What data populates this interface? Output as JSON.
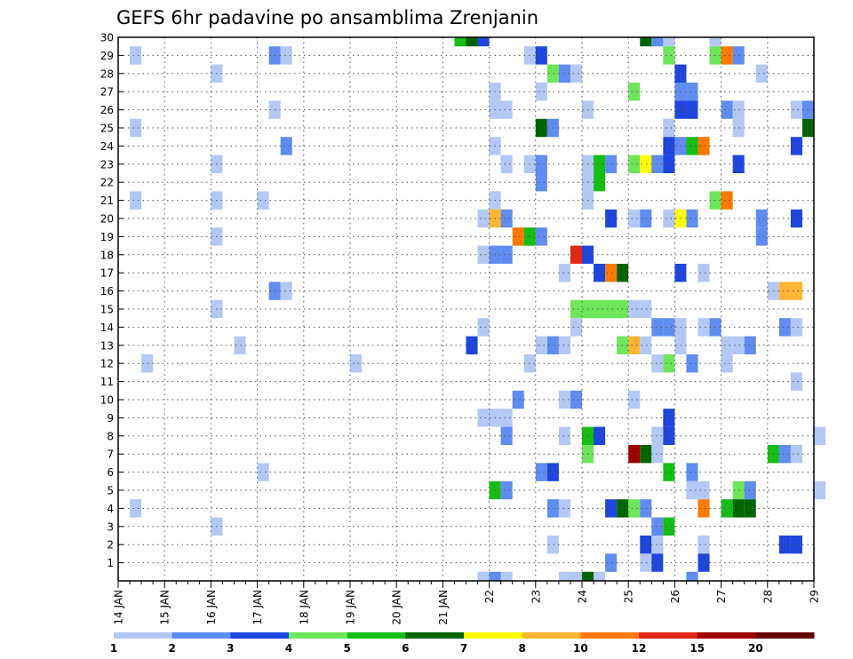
{
  "chart_data": {
    "type": "heatmap",
    "title": "GEFS 6hr padavine po ansamblima Zrenjanin",
    "xlabel": "",
    "ylabel": "",
    "x_tick_labels": [
      "14 JAN",
      "15 JAN",
      "16 JAN",
      "17 JAN",
      "18 JAN",
      "19 JAN",
      "20 JAN",
      "21 JAN",
      "22",
      "23",
      "24",
      "25",
      "26",
      "27",
      "28",
      "29"
    ],
    "x_tick_days": [
      14,
      15,
      16,
      17,
      18,
      19,
      20,
      21,
      22,
      23,
      24,
      25,
      26,
      27,
      28,
      29
    ],
    "xlim_days": [
      14,
      29
    ],
    "time_step_hours": 6,
    "y_tick_labels": [
      "1",
      "2",
      "3",
      "4",
      "5",
      "6",
      "7",
      "8",
      "9",
      "10",
      "11",
      "12",
      "13",
      "14",
      "15",
      "16",
      "17",
      "18",
      "19",
      "20",
      "21",
      "22",
      "23",
      "24",
      "25",
      "26",
      "27",
      "28",
      "29",
      "30"
    ],
    "ylim": [
      0,
      30
    ],
    "grid": true,
    "legend": {
      "placement": "bottom",
      "thresholds": [
        "1",
        "2",
        "3",
        "4",
        "5",
        "6",
        "7",
        "8",
        "10",
        "12",
        "15",
        "20"
      ],
      "colors": [
        "#b4c8f5",
        "#5f8cf0",
        "#1e46dc",
        "#6ee65a",
        "#14be14",
        "#006400",
        "#ffff00",
        "#ffb432",
        "#ff7800",
        "#e12814",
        "#a00000",
        "#640000"
      ]
    },
    "cells_note": "day = fractional day of January (6-hour step), level = color class index 1-12",
    "cells": [
      {
        "member": 30,
        "day": 21.25,
        "level": 5
      },
      {
        "member": 30,
        "day": 21.5,
        "level": 6
      },
      {
        "member": 30,
        "day": 21.75,
        "level": 3
      },
      {
        "member": 30,
        "day": 25.25,
        "level": 6
      },
      {
        "member": 30,
        "day": 25.5,
        "level": 2
      },
      {
        "member": 30,
        "day": 25.75,
        "level": 1
      },
      {
        "member": 30,
        "day": 26.75,
        "level": 1
      },
      {
        "member": 29,
        "day": 14.25,
        "level": 1
      },
      {
        "member": 29,
        "day": 17.25,
        "level": 2
      },
      {
        "member": 29,
        "day": 17.5,
        "level": 1
      },
      {
        "member": 29,
        "day": 22.75,
        "level": 1
      },
      {
        "member": 29,
        "day": 23,
        "level": 3
      },
      {
        "member": 29,
        "day": 25.75,
        "level": 4
      },
      {
        "member": 29,
        "day": 26.75,
        "level": 4
      },
      {
        "member": 29,
        "day": 27,
        "level": 9
      },
      {
        "member": 29,
        "day": 27.25,
        "level": 2
      },
      {
        "member": 28,
        "day": 16,
        "level": 1
      },
      {
        "member": 28,
        "day": 23.25,
        "level": 4
      },
      {
        "member": 28,
        "day": 23.5,
        "level": 2
      },
      {
        "member": 28,
        "day": 23.75,
        "level": 1
      },
      {
        "member": 28,
        "day": 26,
        "level": 3
      },
      {
        "member": 28,
        "day": 27.75,
        "level": 1
      },
      {
        "member": 27,
        "day": 22,
        "level": 1
      },
      {
        "member": 27,
        "day": 23,
        "level": 1
      },
      {
        "member": 27,
        "day": 25,
        "level": 4
      },
      {
        "member": 27,
        "day": 26,
        "level": 2
      },
      {
        "member": 27,
        "day": 26.25,
        "level": 2
      },
      {
        "member": 26,
        "day": 17.25,
        "level": 1
      },
      {
        "member": 26,
        "day": 22,
        "level": 1
      },
      {
        "member": 26,
        "day": 22.25,
        "level": 1
      },
      {
        "member": 26,
        "day": 24,
        "level": 1
      },
      {
        "member": 26,
        "day": 26,
        "level": 3
      },
      {
        "member": 26,
        "day": 26.25,
        "level": 3
      },
      {
        "member": 26,
        "day": 27,
        "level": 2
      },
      {
        "member": 26,
        "day": 27.25,
        "level": 1
      },
      {
        "member": 26,
        "day": 28.5,
        "level": 1
      },
      {
        "member": 26,
        "day": 28.75,
        "level": 2
      },
      {
        "member": 25,
        "day": 14.25,
        "level": 1
      },
      {
        "member": 25,
        "day": 23,
        "level": 6
      },
      {
        "member": 25,
        "day": 23.25,
        "level": 2
      },
      {
        "member": 25,
        "day": 25.75,
        "level": 1
      },
      {
        "member": 25,
        "day": 27.25,
        "level": 1
      },
      {
        "member": 25,
        "day": 28.75,
        "level": 6
      },
      {
        "member": 24,
        "day": 17.5,
        "level": 2
      },
      {
        "member": 24,
        "day": 22,
        "level": 1
      },
      {
        "member": 24,
        "day": 25.75,
        "level": 3
      },
      {
        "member": 24,
        "day": 26,
        "level": 2
      },
      {
        "member": 24,
        "day": 26.25,
        "level": 5
      },
      {
        "member": 24,
        "day": 26.5,
        "level": 9
      },
      {
        "member": 24,
        "day": 28.5,
        "level": 3
      },
      {
        "member": 23,
        "day": 16,
        "level": 1
      },
      {
        "member": 23,
        "day": 22.25,
        "level": 1
      },
      {
        "member": 23,
        "day": 22.75,
        "level": 1
      },
      {
        "member": 23,
        "day": 23,
        "level": 2
      },
      {
        "member": 23,
        "day": 24,
        "level": 1
      },
      {
        "member": 23,
        "day": 24.25,
        "level": 5
      },
      {
        "member": 23,
        "day": 24.5,
        "level": 2
      },
      {
        "member": 23,
        "day": 25,
        "level": 4
      },
      {
        "member": 23,
        "day": 25.25,
        "level": 7
      },
      {
        "member": 23,
        "day": 25.5,
        "level": 2
      },
      {
        "member": 23,
        "day": 25.75,
        "level": 3
      },
      {
        "member": 23,
        "day": 27.25,
        "level": 3
      },
      {
        "member": 22,
        "day": 23,
        "level": 2
      },
      {
        "member": 22,
        "day": 24,
        "level": 1
      },
      {
        "member": 22,
        "day": 24.25,
        "level": 5
      },
      {
        "member": 21,
        "day": 14.25,
        "level": 1
      },
      {
        "member": 21,
        "day": 16,
        "level": 1
      },
      {
        "member": 21,
        "day": 17,
        "level": 1
      },
      {
        "member": 21,
        "day": 22,
        "level": 1
      },
      {
        "member": 21,
        "day": 24,
        "level": 1
      },
      {
        "member": 21,
        "day": 26.75,
        "level": 4
      },
      {
        "member": 21,
        "day": 27,
        "level": 9
      },
      {
        "member": 20,
        "day": 21.75,
        "level": 1
      },
      {
        "member": 20,
        "day": 22,
        "level": 8
      },
      {
        "member": 20,
        "day": 22.25,
        "level": 2
      },
      {
        "member": 20,
        "day": 24.5,
        "level": 3
      },
      {
        "member": 20,
        "day": 25,
        "level": 1
      },
      {
        "member": 20,
        "day": 25.25,
        "level": 2
      },
      {
        "member": 20,
        "day": 25.75,
        "level": 1
      },
      {
        "member": 20,
        "day": 26,
        "level": 7
      },
      {
        "member": 20,
        "day": 26.25,
        "level": 2
      },
      {
        "member": 20,
        "day": 27.75,
        "level": 2
      },
      {
        "member": 20,
        "day": 28.5,
        "level": 3
      },
      {
        "member": 19,
        "day": 16,
        "level": 1
      },
      {
        "member": 19,
        "day": 22.5,
        "level": 9
      },
      {
        "member": 19,
        "day": 22.75,
        "level": 5
      },
      {
        "member": 19,
        "day": 23,
        "level": 2
      },
      {
        "member": 19,
        "day": 27.75,
        "level": 2
      },
      {
        "member": 18,
        "day": 21.75,
        "level": 1
      },
      {
        "member": 18,
        "day": 22,
        "level": 2
      },
      {
        "member": 18,
        "day": 22.25,
        "level": 2
      },
      {
        "member": 18,
        "day": 23.75,
        "level": 10
      },
      {
        "member": 18,
        "day": 24,
        "level": 3
      },
      {
        "member": 17,
        "day": 23.5,
        "level": 1
      },
      {
        "member": 17,
        "day": 24.25,
        "level": 3
      },
      {
        "member": 17,
        "day": 24.5,
        "level": 9
      },
      {
        "member": 17,
        "day": 24.75,
        "level": 6
      },
      {
        "member": 17,
        "day": 26,
        "level": 3
      },
      {
        "member": 17,
        "day": 26.5,
        "level": 1
      },
      {
        "member": 16,
        "day": 17.25,
        "level": 2
      },
      {
        "member": 16,
        "day": 17.5,
        "level": 1
      },
      {
        "member": 16,
        "day": 28,
        "level": 1
      },
      {
        "member": 16,
        "day": 28.25,
        "level": 8
      },
      {
        "member": 16,
        "day": 28.5,
        "level": 8
      },
      {
        "member": 15,
        "day": 16,
        "level": 1
      },
      {
        "member": 15,
        "day": 23.75,
        "level": 4
      },
      {
        "member": 15,
        "day": 24,
        "level": 4
      },
      {
        "member": 15,
        "day": 24.25,
        "level": 4
      },
      {
        "member": 15,
        "day": 24.5,
        "level": 4
      },
      {
        "member": 15,
        "day": 24.75,
        "level": 4
      },
      {
        "member": 15,
        "day": 25,
        "level": 1
      },
      {
        "member": 15,
        "day": 25.25,
        "level": 1
      },
      {
        "member": 14,
        "day": 21.75,
        "level": 1
      },
      {
        "member": 14,
        "day": 23.75,
        "level": 1
      },
      {
        "member": 14,
        "day": 25.5,
        "level": 2
      },
      {
        "member": 14,
        "day": 25.75,
        "level": 2
      },
      {
        "member": 14,
        "day": 26,
        "level": 1
      },
      {
        "member": 14,
        "day": 26.5,
        "level": 1
      },
      {
        "member": 14,
        "day": 26.75,
        "level": 2
      },
      {
        "member": 14,
        "day": 28.25,
        "level": 2
      },
      {
        "member": 14,
        "day": 28.5,
        "level": 1
      },
      {
        "member": 13,
        "day": 16.5,
        "level": 1
      },
      {
        "member": 13,
        "day": 21.5,
        "level": 3
      },
      {
        "member": 13,
        "day": 23,
        "level": 1
      },
      {
        "member": 13,
        "day": 23.25,
        "level": 2
      },
      {
        "member": 13,
        "day": 23.5,
        "level": 1
      },
      {
        "member": 13,
        "day": 24.75,
        "level": 4
      },
      {
        "member": 13,
        "day": 25,
        "level": 8
      },
      {
        "member": 13,
        "day": 25.25,
        "level": 1
      },
      {
        "member": 13,
        "day": 26,
        "level": 1
      },
      {
        "member": 13,
        "day": 27,
        "level": 1
      },
      {
        "member": 13,
        "day": 27.25,
        "level": 1
      },
      {
        "member": 13,
        "day": 27.5,
        "level": 2
      },
      {
        "member": 12,
        "day": 14.5,
        "level": 1
      },
      {
        "member": 12,
        "day": 19,
        "level": 1
      },
      {
        "member": 12,
        "day": 22.75,
        "level": 1
      },
      {
        "member": 12,
        "day": 25.5,
        "level": 1
      },
      {
        "member": 12,
        "day": 25.75,
        "level": 4
      },
      {
        "member": 12,
        "day": 26.25,
        "level": 2
      },
      {
        "member": 12,
        "day": 27,
        "level": 1
      },
      {
        "member": 11,
        "day": 28.5,
        "level": 1
      },
      {
        "member": 10,
        "day": 22.5,
        "level": 2
      },
      {
        "member": 10,
        "day": 23.5,
        "level": 1
      },
      {
        "member": 10,
        "day": 23.75,
        "level": 2
      },
      {
        "member": 10,
        "day": 25,
        "level": 1
      },
      {
        "member": 9,
        "day": 21.75,
        "level": 1
      },
      {
        "member": 9,
        "day": 22,
        "level": 1
      },
      {
        "member": 9,
        "day": 22.25,
        "level": 1
      },
      {
        "member": 9,
        "day": 25.75,
        "level": 3
      },
      {
        "member": 8,
        "day": 22.25,
        "level": 2
      },
      {
        "member": 8,
        "day": 23.5,
        "level": 1
      },
      {
        "member": 8,
        "day": 24,
        "level": 5
      },
      {
        "member": 8,
        "day": 24.25,
        "level": 3
      },
      {
        "member": 8,
        "day": 25.5,
        "level": 1
      },
      {
        "member": 8,
        "day": 25.75,
        "level": 3
      },
      {
        "member": 8,
        "day": 29,
        "level": 1
      },
      {
        "member": 7,
        "day": 24,
        "level": 4
      },
      {
        "member": 7,
        "day": 25,
        "level": 11
      },
      {
        "member": 7,
        "day": 25.25,
        "level": 6
      },
      {
        "member": 7,
        "day": 25.5,
        "level": 1
      },
      {
        "member": 7,
        "day": 28,
        "level": 5
      },
      {
        "member": 7,
        "day": 28.25,
        "level": 2
      },
      {
        "member": 7,
        "day": 28.5,
        "level": 1
      },
      {
        "member": 6,
        "day": 17,
        "level": 1
      },
      {
        "member": 6,
        "day": 23,
        "level": 2
      },
      {
        "member": 6,
        "day": 23.25,
        "level": 3
      },
      {
        "member": 6,
        "day": 25.75,
        "level": 5
      },
      {
        "member": 6,
        "day": 26.25,
        "level": 2
      },
      {
        "member": 5,
        "day": 22,
        "level": 5
      },
      {
        "member": 5,
        "day": 22.25,
        "level": 2
      },
      {
        "member": 5,
        "day": 26.25,
        "level": 1
      },
      {
        "member": 5,
        "day": 26.5,
        "level": 1
      },
      {
        "member": 5,
        "day": 27.25,
        "level": 4
      },
      {
        "member": 5,
        "day": 27.5,
        "level": 2
      },
      {
        "member": 5,
        "day": 29,
        "level": 1
      },
      {
        "member": 4,
        "day": 14.25,
        "level": 1
      },
      {
        "member": 4,
        "day": 23.25,
        "level": 2
      },
      {
        "member": 4,
        "day": 23.5,
        "level": 1
      },
      {
        "member": 4,
        "day": 24.5,
        "level": 3
      },
      {
        "member": 4,
        "day": 24.75,
        "level": 6
      },
      {
        "member": 4,
        "day": 25,
        "level": 4
      },
      {
        "member": 4,
        "day": 25.25,
        "level": 2
      },
      {
        "member": 4,
        "day": 26.5,
        "level": 9
      },
      {
        "member": 4,
        "day": 27,
        "level": 5
      },
      {
        "member": 4,
        "day": 27.25,
        "level": 6
      },
      {
        "member": 4,
        "day": 27.5,
        "level": 6
      },
      {
        "member": 3,
        "day": 16,
        "level": 1
      },
      {
        "member": 3,
        "day": 25.5,
        "level": 2
      },
      {
        "member": 3,
        "day": 25.75,
        "level": 5
      },
      {
        "member": 2,
        "day": 23.25,
        "level": 1
      },
      {
        "member": 2,
        "day": 25.25,
        "level": 3
      },
      {
        "member": 2,
        "day": 25.5,
        "level": 1
      },
      {
        "member": 2,
        "day": 26.5,
        "level": 1
      },
      {
        "member": 2,
        "day": 28.25,
        "level": 3
      },
      {
        "member": 2,
        "day": 28.5,
        "level": 3
      },
      {
        "member": 1,
        "day": 24.5,
        "level": 2
      },
      {
        "member": 1,
        "day": 25.25,
        "level": 1
      },
      {
        "member": 1,
        "day": 25.5,
        "level": 3
      },
      {
        "member": 1,
        "day": 26.5,
        "level": 3
      },
      {
        "member": 0,
        "day": 21.75,
        "level": 1
      },
      {
        "member": 0,
        "day": 22,
        "level": 2
      },
      {
        "member": 0,
        "day": 22.25,
        "level": 1
      },
      {
        "member": 0,
        "day": 23.5,
        "level": 1
      },
      {
        "member": 0,
        "day": 23.75,
        "level": 1
      },
      {
        "member": 0,
        "day": 24,
        "level": 6
      },
      {
        "member": 0,
        "day": 24.25,
        "level": 1
      },
      {
        "member": 0,
        "day": 26.25,
        "level": 2
      }
    ]
  }
}
